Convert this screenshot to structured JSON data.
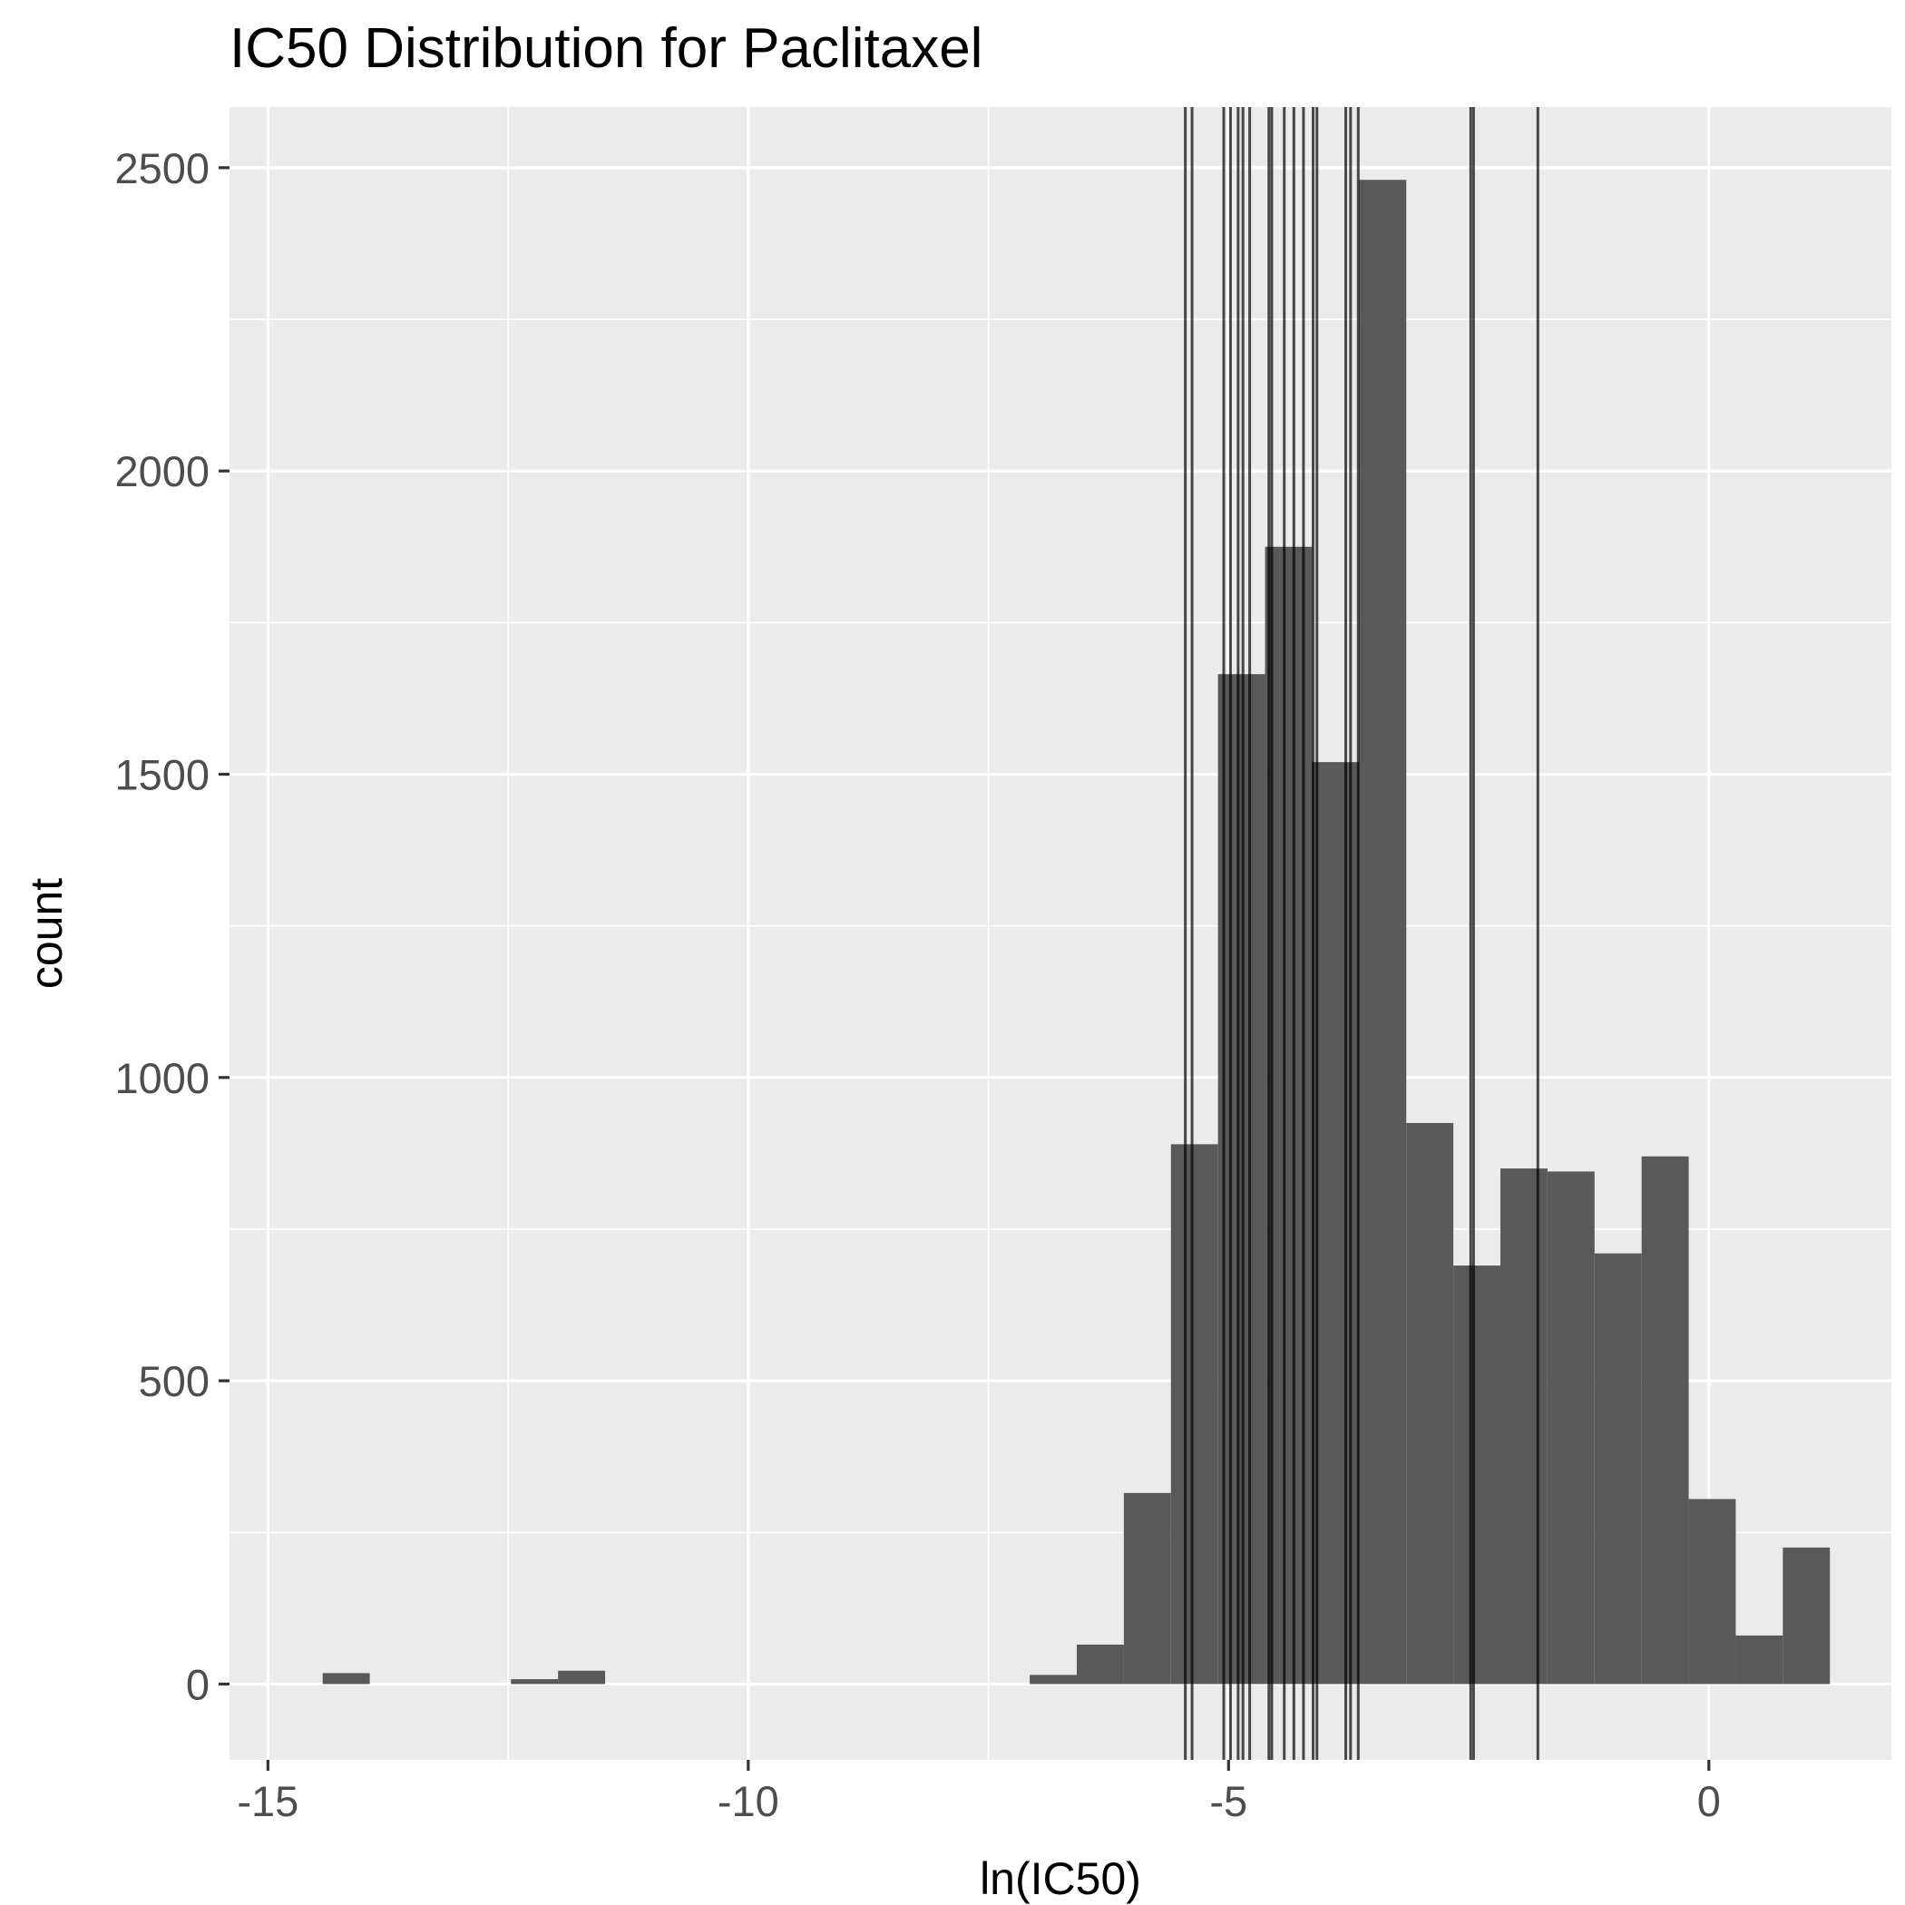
{
  "chart_data": {
    "type": "bar",
    "title": "IC50 Distribution for Paclitaxel",
    "xlabel": "ln(IC50)",
    "ylabel": "count",
    "xlim": [
      -15.4,
      1.9
    ],
    "ylim": [
      -125,
      2600
    ],
    "x_ticks": [
      -15,
      -10,
      -5,
      0
    ],
    "x_tick_labels": [
      "-15",
      "-10",
      "-5",
      "0"
    ],
    "y_ticks": [
      0,
      500,
      1000,
      1500,
      2000,
      2500
    ],
    "y_tick_labels": [
      "0",
      "500",
      "1000",
      "1500",
      "2000",
      "2500"
    ],
    "grid": true,
    "legend": "none",
    "bin_width": 0.49,
    "bins": [
      {
        "x0": -14.43,
        "x1": -13.94,
        "count": 18
      },
      {
        "x0": -12.47,
        "x1": -11.98,
        "count": 8
      },
      {
        "x0": -11.98,
        "x1": -11.49,
        "count": 22
      },
      {
        "x0": -7.07,
        "x1": -6.58,
        "count": 15
      },
      {
        "x0": -6.58,
        "x1": -6.09,
        "count": 65
      },
      {
        "x0": -6.09,
        "x1": -5.6,
        "count": 315
      },
      {
        "x0": -5.6,
        "x1": -5.11,
        "count": 890
      },
      {
        "x0": -5.11,
        "x1": -4.62,
        "count": 1665
      },
      {
        "x0": -4.62,
        "x1": -4.13,
        "count": 1875
      },
      {
        "x0": -4.13,
        "x1": -3.64,
        "count": 1520
      },
      {
        "x0": -3.64,
        "x1": -3.15,
        "count": 2480
      },
      {
        "x0": -3.15,
        "x1": -2.66,
        "count": 925
      },
      {
        "x0": -2.66,
        "x1": -2.17,
        "count": 690
      },
      {
        "x0": -2.17,
        "x1": -1.68,
        "count": 850
      },
      {
        "x0": -1.68,
        "x1": -1.19,
        "count": 845
      },
      {
        "x0": -1.19,
        "x1": -0.7,
        "count": 710
      },
      {
        "x0": -0.7,
        "x1": -0.21,
        "count": 870
      },
      {
        "x0": -0.21,
        "x1": 0.28,
        "count": 305
      },
      {
        "x0": 0.28,
        "x1": 0.77,
        "count": 80
      },
      {
        "x0": 0.77,
        "x1": 1.26,
        "count": 225
      }
    ],
    "vlines": [
      -5.45,
      -5.38,
      -5.05,
      -4.98,
      -4.9,
      -4.85,
      -4.78,
      -4.58,
      -4.55,
      -4.42,
      -4.32,
      -4.22,
      -4.12,
      -4.08,
      -3.78,
      -3.73,
      -3.65,
      -2.48,
      -2.45,
      -1.78
    ]
  },
  "style": {
    "panel_bg": "#ebebeb",
    "grid_major": "#ffffff",
    "bar_fill": "#595959",
    "vline_color": "#000000",
    "axis_tick_color": "#333333"
  }
}
